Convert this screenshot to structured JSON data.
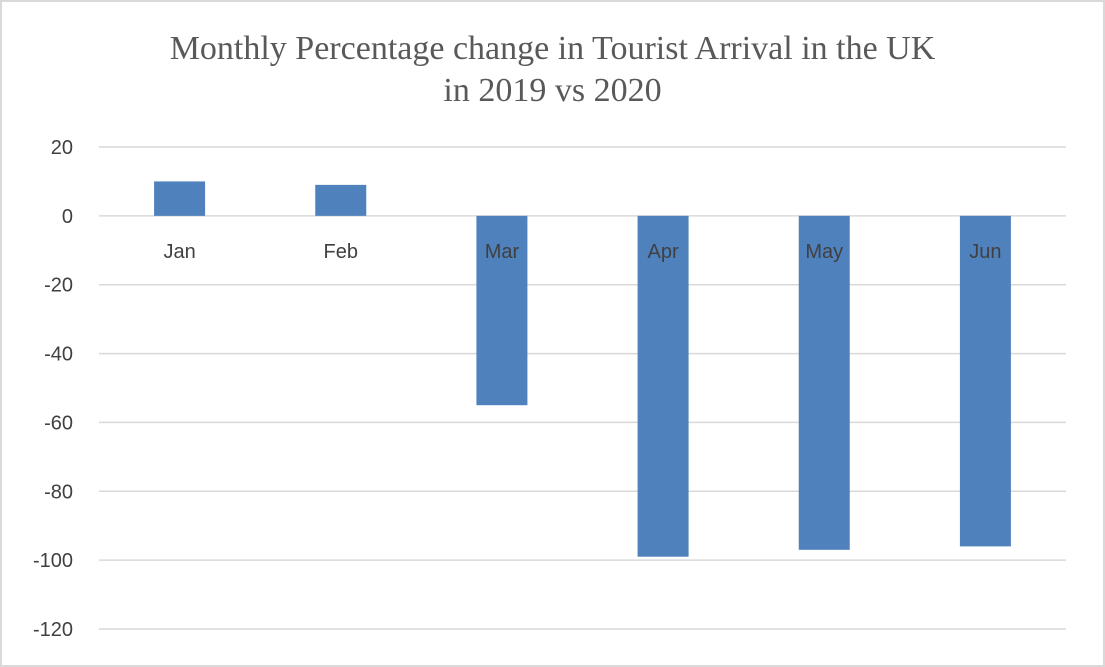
{
  "chart_data": {
    "type": "bar",
    "title": [
      "Monthly Percentage change in Tourist Arrival in the UK",
      "in 2019 vs 2020"
    ],
    "xlabel": "",
    "ylabel": "",
    "categories": [
      "Jan",
      "Feb",
      "Mar",
      "Apr",
      "May",
      "Jun"
    ],
    "values": [
      10,
      9,
      -55,
      -99,
      -97,
      -96
    ],
    "ylim": [
      -120,
      20
    ],
    "yticks": [
      20,
      0,
      -20,
      -40,
      -60,
      -80,
      -100,
      -120
    ],
    "grid": true,
    "legend": "none",
    "colors": {
      "bar": "#4f81bd",
      "grid": "#d9d9d9",
      "text": "#595959"
    }
  }
}
